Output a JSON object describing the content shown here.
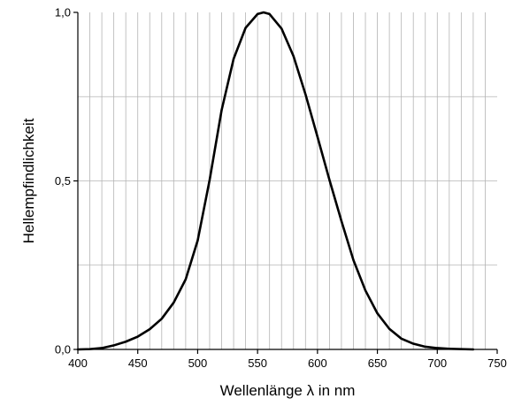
{
  "chart_data": {
    "type": "line",
    "title": "",
    "xlabel": "Wellenlänge λ in nm",
    "ylabel": "Hellempfindlichkeit",
    "xlim": [
      400,
      750
    ],
    "ylim": [
      0,
      1
    ],
    "x_ticks": [
      400,
      450,
      500,
      550,
      600,
      650,
      700,
      750
    ],
    "x_tick_labels": [
      "400",
      "450",
      "500",
      "550",
      "600",
      "650",
      "700",
      "750"
    ],
    "y_ticks": [
      0,
      0.5,
      1
    ],
    "y_tick_labels": [
      "0,0",
      "0,5",
      "1,0"
    ],
    "x_minor_grid_step": 10,
    "y_minor_grid": [
      0.25,
      0.75
    ],
    "grid": true,
    "legend": "none",
    "line_color": "#000000",
    "grid_color": "#b4b4b4",
    "series": [
      {
        "x": [
          400,
          410,
          420,
          430,
          440,
          450,
          460,
          470,
          480,
          490,
          500,
          510,
          520,
          530,
          540,
          550,
          555,
          560,
          570,
          580,
          590,
          600,
          610,
          620,
          630,
          640,
          650,
          660,
          670,
          680,
          690,
          700,
          710,
          720,
          730
        ],
        "y": [
          0.0,
          0.001,
          0.004,
          0.012,
          0.023,
          0.038,
          0.06,
          0.091,
          0.139,
          0.208,
          0.323,
          0.503,
          0.71,
          0.862,
          0.954,
          0.995,
          1.0,
          0.995,
          0.952,
          0.87,
          0.757,
          0.631,
          0.503,
          0.381,
          0.265,
          0.175,
          0.107,
          0.061,
          0.032,
          0.017,
          0.008,
          0.004,
          0.002,
          0.001,
          0.0
        ]
      }
    ]
  }
}
